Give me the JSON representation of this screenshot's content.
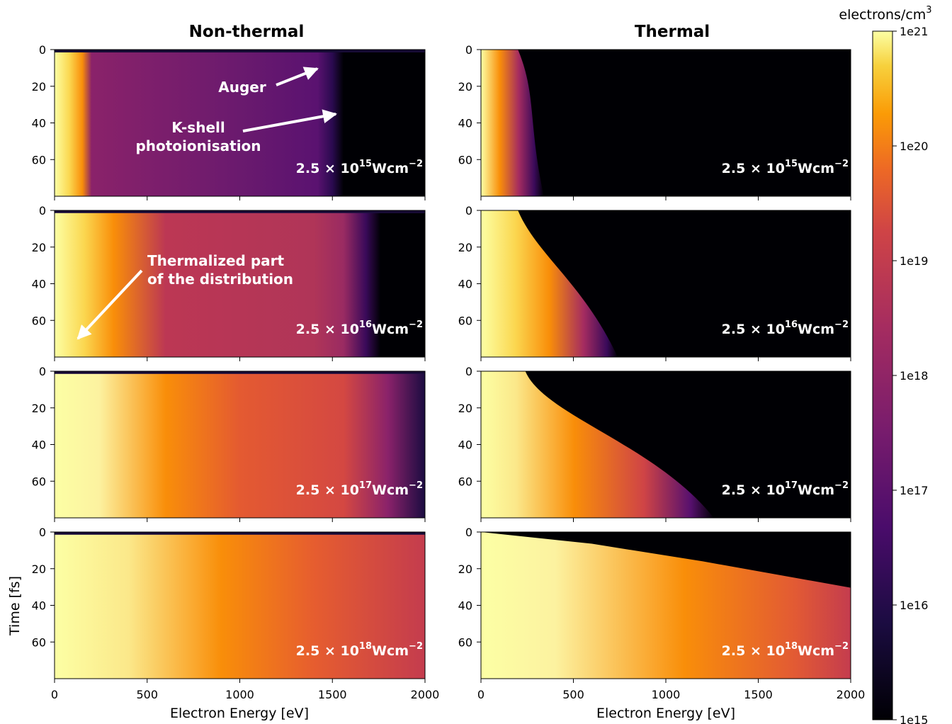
{
  "chart_data": {
    "type": "heatmap",
    "column_titles": [
      "Non-thermal",
      "Thermal"
    ],
    "xlabel": "Electron Energy [eV]",
    "ylabel": "Time [fs]",
    "xlim": [
      0,
      2000
    ],
    "xticks": [
      0,
      500,
      1000,
      1500,
      2000
    ],
    "ylim": [
      0,
      80
    ],
    "y_inverted": true,
    "yticks": [
      0,
      20,
      40,
      60
    ],
    "colormap": "inferno",
    "intensity_labels": [
      {
        "base": "2.5 × 10",
        "exponent": "15",
        "unit": "Wcm",
        "unit_exponent": "−2"
      },
      {
        "base": "2.5 × 10",
        "exponent": "16",
        "unit": "Wcm",
        "unit_exponent": "−2"
      },
      {
        "base": "2.5 × 10",
        "exponent": "17",
        "unit": "Wcm",
        "unit_exponent": "−2"
      },
      {
        "base": "2.5 × 10",
        "exponent": "18",
        "unit": "Wcm",
        "unit_exponent": "−2"
      }
    ],
    "annotations": {
      "auger": "Auger",
      "kshell": [
        "K-shell",
        "photoionisation"
      ],
      "thermalized": [
        "Thermalized part",
        "of the distribution"
      ]
    },
    "colorbar": {
      "label": "electrons/cm",
      "label_exponent": "3",
      "scale": "log",
      "lim": [
        1000000000000000.0,
        1e+21
      ],
      "ticks": [
        {
          "value": 1000000000000000.0,
          "label": "1e15"
        },
        {
          "value": 1e+16,
          "label": "1e16"
        },
        {
          "value": 1e+17,
          "label": "1e17"
        },
        {
          "value": 1e+18,
          "label": "1e18"
        },
        {
          "value": 1e+19,
          "label": "1e19"
        },
        {
          "value": 1e+20,
          "label": "1e20"
        },
        {
          "value": 1e+21,
          "label": "1e21"
        }
      ]
    }
  }
}
